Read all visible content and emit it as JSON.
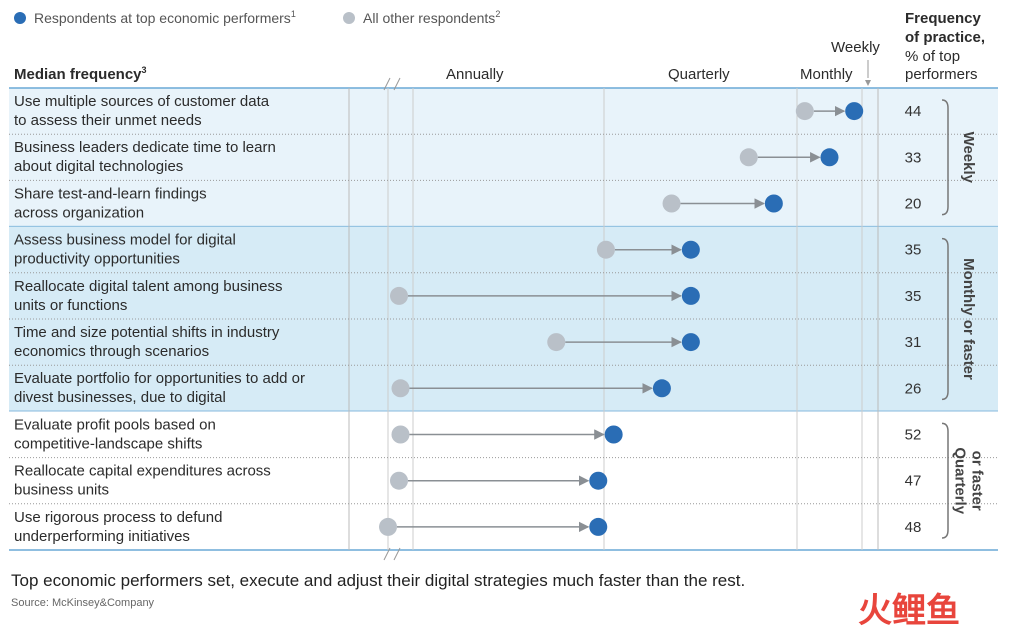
{
  "legend": {
    "top_label": "Respondents at top economic performers",
    "top_sup": "1",
    "other_label": "All other respondents",
    "other_sup": "2"
  },
  "header": {
    "median_label": "Median frequency",
    "median_sup": "3",
    "annually": "Annually",
    "quarterly": "Quarterly",
    "monthly": "Monthly",
    "weekly": "Weekly",
    "freq_line1": "Frequency",
    "freq_line2": "of practice,",
    "freq_line3": "% of top",
    "freq_line4": "performers"
  },
  "colors": {
    "top": "#2a6db5",
    "other": "#b9c0c8",
    "band_light": "#e8f3fa",
    "band_mid": "#d6ebf6",
    "arrow": "#8a8f94"
  },
  "chart_data": {
    "type": "dot_arrow",
    "x_scale": [
      "Annually",
      "Quarterly",
      "Monthly",
      "Weekly"
    ],
    "rows": [
      {
        "label": [
          "Use multiple sources of customer data",
          "to assess their unmet needs"
        ],
        "other": 4.12,
        "top": 4.88,
        "pct": "44",
        "group": 0
      },
      {
        "label": [
          "Business leaders dedicate time to learn",
          "about digital technologies"
        ],
        "other": 3.75,
        "top": 4.5,
        "pct": "33",
        "group": 0
      },
      {
        "label": [
          "Share test-and-learn findings",
          "across organization"
        ],
        "other": 3.35,
        "top": 3.88,
        "pct": "20",
        "group": 0
      },
      {
        "label": [
          "Assess business model for digital",
          "productivity opportunities"
        ],
        "other": 3.01,
        "top": 3.45,
        "pct": "35",
        "group": 1
      },
      {
        "label": [
          "Reallocate digital talent among business",
          "units or functions"
        ],
        "other": 1.72,
        "top": 3.45,
        "pct": "35",
        "group": 1
      },
      {
        "label": [
          "Time and size potential shifts in industry",
          "economics through scenarios"
        ],
        "other": 2.75,
        "top": 3.45,
        "pct": "31",
        "group": 1
      },
      {
        "label": [
          "Evaluate portfolio for opportunities to add or",
          "divest businesses, due to digital"
        ],
        "other": 1.75,
        "top": 3.3,
        "pct": "26",
        "group": 1
      },
      {
        "label": [
          "Evaluate profit pools based on",
          "competitive-landscape shifts"
        ],
        "other": 1.75,
        "top": 3.05,
        "pct": "52",
        "group": 2
      },
      {
        "label": [
          "Reallocate capital expenditures across",
          "business units"
        ],
        "other": 1.72,
        "top": 2.97,
        "pct": "47",
        "group": 2
      },
      {
        "label": [
          "Use rigorous process to defund",
          "underperforming initiatives"
        ],
        "other": 1.5,
        "top": 2.97,
        "pct": "48",
        "group": 2
      }
    ],
    "groups": [
      {
        "label": [
          "Weekly"
        ]
      },
      {
        "label": [
          "Monthly or faster"
        ]
      },
      {
        "label": [
          "Quarterly",
          "or faster"
        ]
      }
    ]
  },
  "caption": "Top economic performers set, execute and adjust their digital strategies much faster than the rest.",
  "source": "Source: McKinsey&Company",
  "watermark": {
    "chars": "火鲤鱼",
    "color": "#e8453c"
  }
}
